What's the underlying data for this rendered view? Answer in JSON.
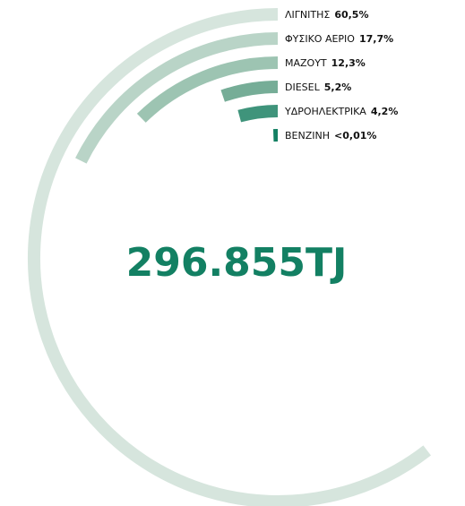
{
  "chart_data": {
    "type": "radial_bar",
    "total": "296.855TJ",
    "categories": [
      "ΛΙΓΝΙΤΗΣ",
      "ΦΥΣΙΚΟ ΑΕΡΙΟ",
      "ΜΑΖΟΥΤ",
      "DIESEL",
      "ΥΔΡΟΗΛΕΚΤΡΙΚΑ",
      "ΒΕΝΖΙΝΗ"
    ],
    "values": [
      60.5,
      17.7,
      12.3,
      5.2,
      4.2,
      0.01
    ],
    "value_labels": [
      "60,5%",
      "17,7%",
      "12,3%",
      "5,2%",
      "4,2%",
      "<0,01%"
    ],
    "colors": [
      "#d6e5dd",
      "#b9d4c7",
      "#9dc4b2",
      "#76ad97",
      "#3f947b",
      "#138063"
    ]
  }
}
